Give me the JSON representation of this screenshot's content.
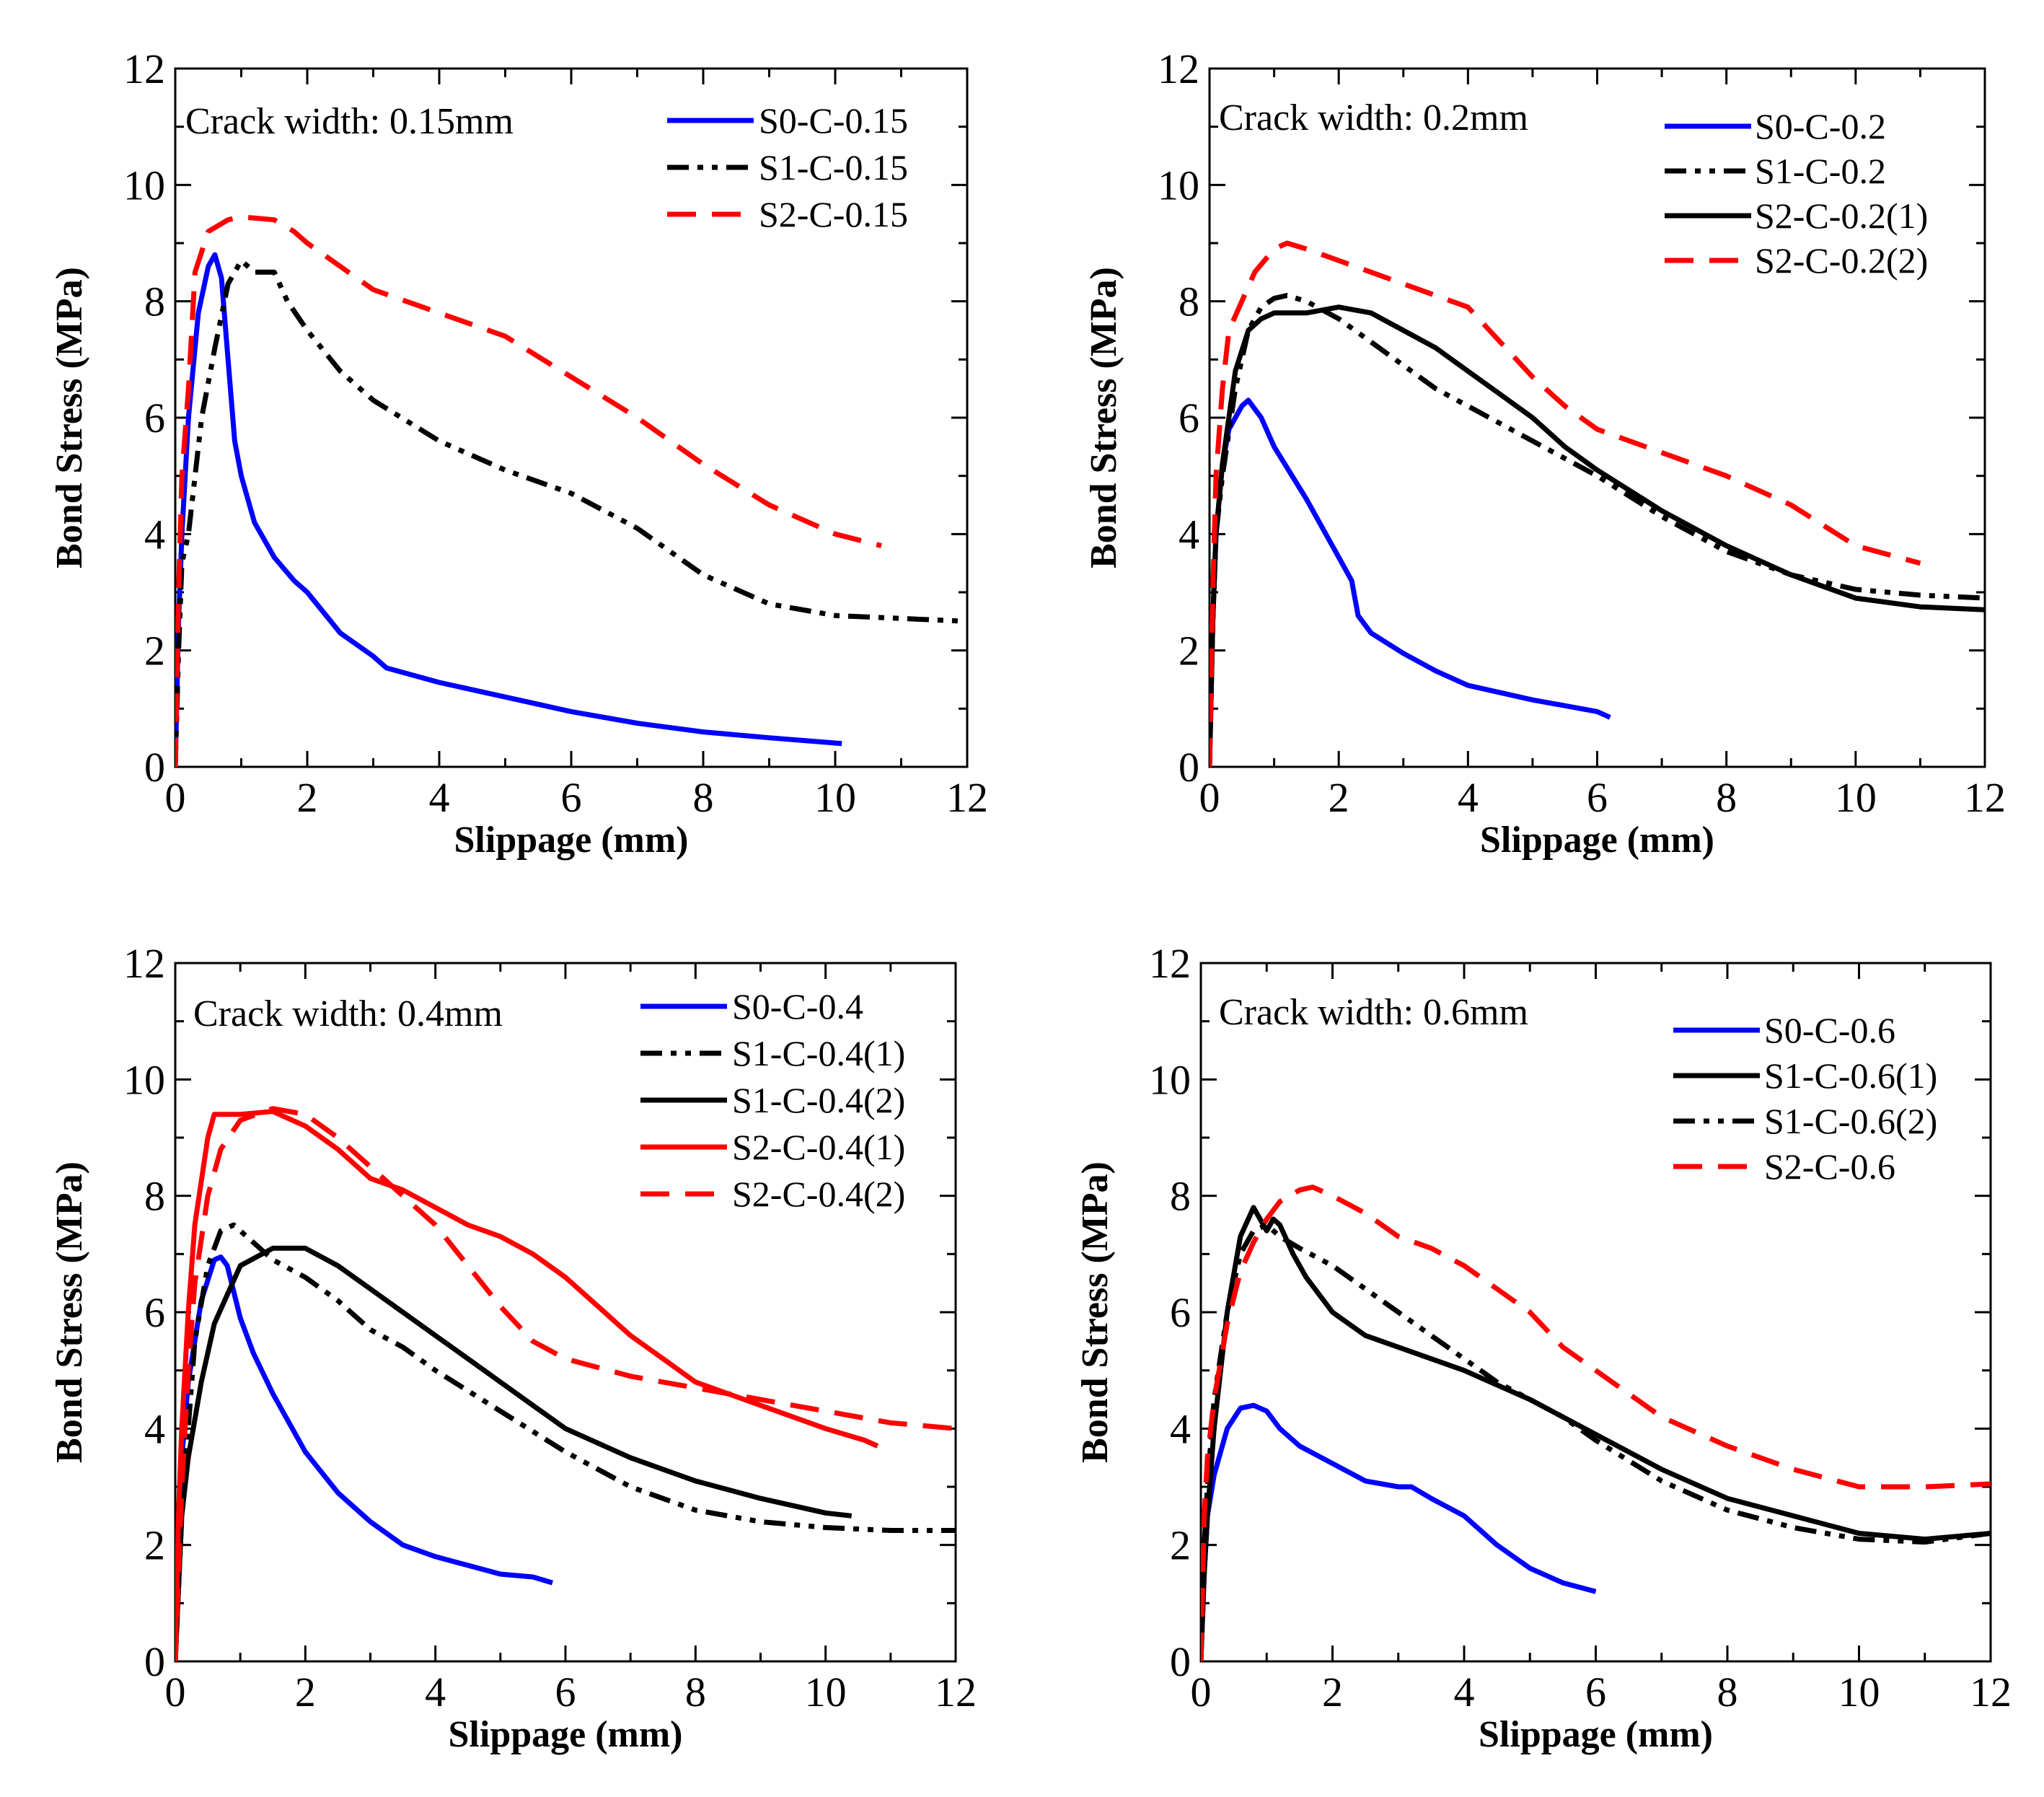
{
  "chart_data": [
    {
      "type": "line",
      "annotation": "Crack width: 0.15mm",
      "xlabel": "Slippage (mm)",
      "ylabel": "Bond Stress (MPa)",
      "xlim": [
        0,
        12
      ],
      "ylim": [
        0,
        12
      ],
      "xticks": [
        0,
        2,
        4,
        6,
        8,
        10,
        12
      ],
      "yticks": [
        0,
        2,
        4,
        6,
        8,
        10,
        12
      ],
      "legend_position": "top-right",
      "series": [
        {
          "name": "S0-C-0.15",
          "color": "#0000ff",
          "dash": "solid",
          "x": [
            0.0,
            0.05,
            0.1,
            0.2,
            0.35,
            0.5,
            0.6,
            0.7,
            0.8,
            0.9,
            1.0,
            1.2,
            1.5,
            1.8,
            2.0,
            2.5,
            3.0,
            3.2,
            4.0,
            5.0,
            6.0,
            7.0,
            8.0,
            9.0,
            10.1
          ],
          "y": [
            0.0,
            2.5,
            4.0,
            6.0,
            7.8,
            8.6,
            8.8,
            8.4,
            7.0,
            5.6,
            5.0,
            4.2,
            3.6,
            3.2,
            3.0,
            2.3,
            1.9,
            1.7,
            1.45,
            1.2,
            0.95,
            0.75,
            0.6,
            0.5,
            0.4
          ]
        },
        {
          "name": "S1-C-0.15",
          "color": "#000000",
          "dash": "dashdot",
          "x": [
            0.0,
            0.05,
            0.1,
            0.2,
            0.4,
            0.6,
            0.8,
            1.0,
            1.2,
            1.5,
            1.7,
            2.0,
            2.5,
            3.0,
            4.0,
            5.0,
            6.0,
            7.0,
            8.0,
            9.0,
            10.0,
            11.0,
            12.0
          ],
          "y": [
            0.0,
            2.0,
            3.5,
            4.0,
            6.0,
            7.2,
            8.3,
            8.7,
            8.5,
            8.5,
            8.0,
            7.5,
            6.8,
            6.3,
            5.6,
            5.1,
            4.7,
            4.1,
            3.3,
            2.8,
            2.6,
            2.55,
            2.5
          ]
        },
        {
          "name": "S2-C-0.15",
          "color": "#ff0000",
          "dash": "dashed",
          "x": [
            0.0,
            0.05,
            0.1,
            0.2,
            0.3,
            0.5,
            0.8,
            1.0,
            1.5,
            1.8,
            2.0,
            2.5,
            3.0,
            3.5,
            4.0,
            5.0,
            6.0,
            7.0,
            8.0,
            9.0,
            10.0,
            10.7
          ],
          "y": [
            0.0,
            3.0,
            5.0,
            6.5,
            8.5,
            9.2,
            9.4,
            9.45,
            9.4,
            9.2,
            9.0,
            8.6,
            8.2,
            8.0,
            7.8,
            7.4,
            6.7,
            6.0,
            5.2,
            4.5,
            4.0,
            3.8
          ]
        }
      ]
    },
    {
      "type": "line",
      "annotation": "Crack width: 0.2mm",
      "xlabel": "Slippage (mm)",
      "ylabel": "Bond Stress (MPa)",
      "xlim": [
        0,
        12
      ],
      "ylim": [
        0,
        12
      ],
      "xticks": [
        0,
        2,
        4,
        6,
        8,
        10,
        12
      ],
      "yticks": [
        0,
        2,
        4,
        6,
        8,
        10,
        12
      ],
      "legend_position": "top-right",
      "series": [
        {
          "name": "S0-C-0.2",
          "color": "#0000ff",
          "dash": "solid",
          "x": [
            0.0,
            0.05,
            0.1,
            0.2,
            0.3,
            0.5,
            0.6,
            0.8,
            1.0,
            1.5,
            2.0,
            2.2,
            2.3,
            2.5,
            3.0,
            3.5,
            4.0,
            5.0,
            6.0,
            6.2
          ],
          "y": [
            0.0,
            2.5,
            4.0,
            5.2,
            5.8,
            6.2,
            6.3,
            6.0,
            5.5,
            4.6,
            3.6,
            3.2,
            2.6,
            2.3,
            1.95,
            1.65,
            1.4,
            1.15,
            0.95,
            0.85
          ]
        },
        {
          "name": "S1-C-0.2",
          "color": "#000000",
          "dash": "dashdot",
          "x": [
            0.0,
            0.05,
            0.1,
            0.2,
            0.4,
            0.6,
            0.8,
            1.0,
            1.2,
            1.5,
            2.0,
            2.5,
            3.0,
            3.5,
            4.0,
            5.0,
            6.0,
            7.0,
            8.0,
            9.0,
            10.0,
            11.0,
            12.0
          ],
          "y": [
            0.0,
            2.5,
            4.0,
            5.0,
            6.5,
            7.5,
            7.9,
            8.05,
            8.1,
            8.0,
            7.7,
            7.3,
            6.9,
            6.5,
            6.2,
            5.6,
            5.0,
            4.3,
            3.7,
            3.3,
            3.05,
            2.95,
            2.9
          ]
        },
        {
          "name": "S2-C-0.2(1)",
          "color": "#000000",
          "dash": "solid",
          "x": [
            0.0,
            0.05,
            0.1,
            0.2,
            0.4,
            0.6,
            0.8,
            1.0,
            1.5,
            2.0,
            2.5,
            3.0,
            3.5,
            4.0,
            4.5,
            5.0,
            5.5,
            6.0,
            7.0,
            8.0,
            9.0,
            10.0,
            11.0,
            12.0
          ],
          "y": [
            0.0,
            2.5,
            4.0,
            5.2,
            6.8,
            7.5,
            7.7,
            7.8,
            7.8,
            7.9,
            7.8,
            7.5,
            7.2,
            6.8,
            6.4,
            6.0,
            5.5,
            5.1,
            4.4,
            3.8,
            3.3,
            2.9,
            2.75,
            2.7
          ]
        },
        {
          "name": "S2-C-0.2(2)",
          "color": "#ff0000",
          "dash": "dashed",
          "x": [
            0.0,
            0.05,
            0.1,
            0.2,
            0.3,
            0.5,
            0.7,
            1.0,
            1.2,
            1.5,
            2.0,
            2.5,
            3.0,
            3.5,
            4.0,
            4.5,
            5.0,
            5.5,
            6.0,
            7.0,
            8.0,
            9.0,
            10.0,
            11.0
          ],
          "y": [
            0.0,
            3.0,
            5.0,
            6.5,
            7.5,
            8.0,
            8.5,
            8.9,
            9.0,
            8.9,
            8.7,
            8.5,
            8.3,
            8.1,
            7.9,
            7.3,
            6.7,
            6.2,
            5.8,
            5.4,
            5.0,
            4.5,
            3.8,
            3.5
          ]
        }
      ]
    },
    {
      "type": "line",
      "annotation": "Crack width: 0.4mm",
      "xlabel": "Slippage (mm)",
      "ylabel": "Bond Stress (MPa)",
      "xlim": [
        0,
        12
      ],
      "ylim": [
        0,
        12
      ],
      "xticks": [
        0,
        2,
        4,
        6,
        8,
        10,
        12
      ],
      "yticks": [
        0,
        2,
        4,
        6,
        8,
        10,
        12
      ],
      "legend_position": "top-right",
      "series": [
        {
          "name": "S0-C-0.4",
          "color": "#0000ff",
          "dash": "solid",
          "x": [
            0.0,
            0.05,
            0.1,
            0.2,
            0.4,
            0.6,
            0.7,
            0.8,
            1.0,
            1.2,
            1.5,
            2.0,
            2.5,
            3.0,
            3.5,
            4.0,
            4.5,
            5.0,
            5.5,
            5.8
          ],
          "y": [
            0.0,
            2.0,
            3.5,
            4.8,
            6.2,
            6.9,
            6.95,
            6.8,
            5.9,
            5.3,
            4.6,
            3.6,
            2.9,
            2.4,
            2.0,
            1.8,
            1.65,
            1.5,
            1.45,
            1.35
          ]
        },
        {
          "name": "S1-C-0.4(1)",
          "color": "#000000",
          "dash": "dashdot",
          "x": [
            0.0,
            0.1,
            0.2,
            0.3,
            0.5,
            0.7,
            0.9,
            1.2,
            1.5,
            2.0,
            2.5,
            3.0,
            3.5,
            4.0,
            5.0,
            6.0,
            7.0,
            8.0,
            9.0,
            10.0,
            11.0,
            12.0
          ],
          "y": [
            0.0,
            2.5,
            4.0,
            5.5,
            6.8,
            7.4,
            7.5,
            7.2,
            6.9,
            6.6,
            6.2,
            5.7,
            5.4,
            5.0,
            4.3,
            3.6,
            3.0,
            2.6,
            2.4,
            2.3,
            2.25,
            2.25
          ]
        },
        {
          "name": "S1-C-0.4(2)",
          "color": "#000000",
          "dash": "solid",
          "x": [
            0.0,
            0.1,
            0.2,
            0.4,
            0.6,
            0.8,
            1.0,
            1.5,
            2.0,
            2.5,
            3.0,
            3.5,
            4.0,
            4.5,
            5.0,
            5.5,
            6.0,
            7.0,
            8.0,
            9.0,
            10.0,
            10.4
          ],
          "y": [
            0.0,
            2.5,
            3.5,
            4.8,
            5.8,
            6.3,
            6.8,
            7.1,
            7.1,
            6.8,
            6.4,
            6.0,
            5.6,
            5.2,
            4.8,
            4.4,
            4.0,
            3.5,
            3.1,
            2.8,
            2.55,
            2.5
          ]
        },
        {
          "name": "S2-C-0.4(1)",
          "color": "#ff0000",
          "dash": "solid",
          "x": [
            0.0,
            0.05,
            0.1,
            0.2,
            0.3,
            0.5,
            0.6,
            1.0,
            1.5,
            2.0,
            2.5,
            3.0,
            3.5,
            4.0,
            4.5,
            5.0,
            5.5,
            6.0,
            6.5,
            7.0,
            7.5,
            8.0,
            9.0,
            10.0,
            10.6,
            10.8
          ],
          "y": [
            0.0,
            2.5,
            4.0,
            6.0,
            7.5,
            9.0,
            9.4,
            9.4,
            9.45,
            9.2,
            8.8,
            8.3,
            8.1,
            7.8,
            7.5,
            7.3,
            7.0,
            6.6,
            6.1,
            5.6,
            5.2,
            4.8,
            4.4,
            4.0,
            3.8,
            3.7
          ]
        },
        {
          "name": "S2-C-0.4(2)",
          "color": "#ff0000",
          "dash": "dashed",
          "x": [
            0.0,
            0.1,
            0.2,
            0.3,
            0.5,
            0.7,
            1.0,
            1.5,
            2.0,
            2.5,
            3.0,
            3.5,
            4.0,
            4.5,
            5.0,
            5.5,
            6.0,
            7.0,
            8.0,
            9.0,
            10.0,
            11.0,
            12.0
          ],
          "y": [
            0.0,
            3.0,
            5.0,
            6.5,
            8.0,
            8.8,
            9.3,
            9.5,
            9.4,
            9.0,
            8.5,
            8.0,
            7.5,
            6.8,
            6.1,
            5.5,
            5.2,
            4.9,
            4.7,
            4.5,
            4.3,
            4.1,
            4.0
          ]
        }
      ]
    },
    {
      "type": "line",
      "annotation": "Crack width: 0.6mm",
      "xlabel": "Slippage (mm)",
      "ylabel": "Bond Stress (MPa)",
      "xlim": [
        0,
        12
      ],
      "ylim": [
        0,
        12
      ],
      "xticks": [
        0,
        2,
        4,
        6,
        8,
        10,
        12
      ],
      "yticks": [
        0,
        2,
        4,
        6,
        8,
        10,
        12
      ],
      "legend_position": "top-right",
      "series": [
        {
          "name": "S0-C-0.6",
          "color": "#0000ff",
          "dash": "solid",
          "x": [
            0.0,
            0.05,
            0.1,
            0.2,
            0.4,
            0.6,
            0.8,
            1.0,
            1.2,
            1.5,
            2.0,
            2.5,
            3.0,
            3.2,
            3.5,
            4.0,
            4.5,
            5.0,
            5.5,
            6.0
          ],
          "y": [
            0.0,
            1.5,
            2.5,
            3.2,
            4.0,
            4.35,
            4.4,
            4.3,
            4.0,
            3.7,
            3.4,
            3.1,
            3.0,
            3.0,
            2.8,
            2.5,
            2.0,
            1.6,
            1.35,
            1.2
          ]
        },
        {
          "name": "S1-C-0.6(1)",
          "color": "#000000",
          "dash": "solid",
          "x": [
            0.0,
            0.05,
            0.1,
            0.2,
            0.4,
            0.6,
            0.8,
            0.9,
            1.0,
            1.1,
            1.2,
            1.4,
            1.6,
            2.0,
            2.5,
            3.0,
            4.0,
            5.0,
            6.0,
            7.0,
            8.0,
            9.0,
            10.0,
            11.0,
            12.0
          ],
          "y": [
            0.0,
            1.5,
            2.5,
            4.0,
            6.0,
            7.3,
            7.8,
            7.6,
            7.4,
            7.6,
            7.5,
            7.0,
            6.6,
            6.0,
            5.6,
            5.4,
            5.0,
            4.5,
            3.9,
            3.3,
            2.8,
            2.5,
            2.2,
            2.1,
            2.2
          ]
        },
        {
          "name": "S1-C-0.6(2)",
          "color": "#000000",
          "dash": "dashdot",
          "x": [
            0.0,
            0.05,
            0.1,
            0.2,
            0.4,
            0.6,
            0.8,
            1.0,
            1.2,
            1.5,
            2.0,
            2.5,
            3.0,
            3.5,
            4.0,
            4.5,
            5.0,
            5.5,
            6.0,
            7.0,
            8.0,
            9.0,
            10.0,
            11.0,
            12.0
          ],
          "y": [
            0.0,
            2.0,
            3.0,
            4.5,
            6.0,
            7.0,
            7.4,
            7.5,
            7.3,
            7.1,
            6.8,
            6.4,
            6.0,
            5.6,
            5.2,
            4.8,
            4.5,
            4.2,
            3.8,
            3.1,
            2.6,
            2.3,
            2.1,
            2.05,
            2.2
          ]
        },
        {
          "name": "S2-C-0.6",
          "color": "#ff0000",
          "dash": "dashed",
          "x": [
            0.0,
            0.05,
            0.1,
            0.2,
            0.4,
            0.6,
            0.8,
            1.0,
            1.2,
            1.5,
            1.7,
            2.0,
            2.5,
            3.0,
            3.5,
            4.0,
            4.5,
            5.0,
            5.5,
            6.0,
            6.5,
            7.0,
            8.0,
            9.0,
            10.0,
            11.0,
            12.0
          ],
          "y": [
            0.0,
            2.5,
            3.5,
            4.5,
            5.8,
            6.7,
            7.2,
            7.6,
            7.9,
            8.1,
            8.15,
            8.0,
            7.7,
            7.3,
            7.1,
            6.8,
            6.4,
            6.0,
            5.4,
            5.0,
            4.6,
            4.2,
            3.7,
            3.3,
            3.0,
            3.0,
            3.05
          ]
        }
      ]
    }
  ]
}
